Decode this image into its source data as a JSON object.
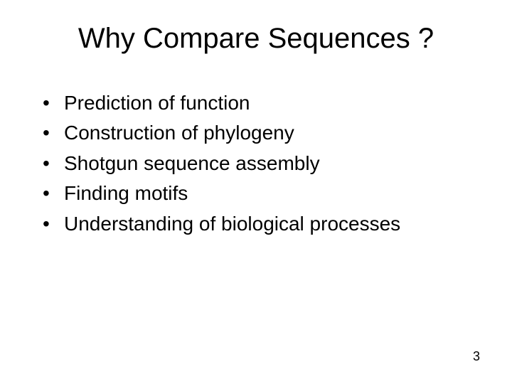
{
  "slide": {
    "title": "Why Compare Sequences ?",
    "bullets": [
      "Prediction of function",
      "Construction of phylogeny",
      "Shotgun sequence assembly",
      "Finding motifs",
      "Understanding of biological processes"
    ],
    "page_number": "3"
  },
  "styling": {
    "background_color": "#ffffff",
    "text_color": "#000000",
    "title_fontsize": 40,
    "body_fontsize": 28,
    "page_number_fontsize": 18,
    "font_family": "Arial",
    "bullet_marker": "•"
  }
}
